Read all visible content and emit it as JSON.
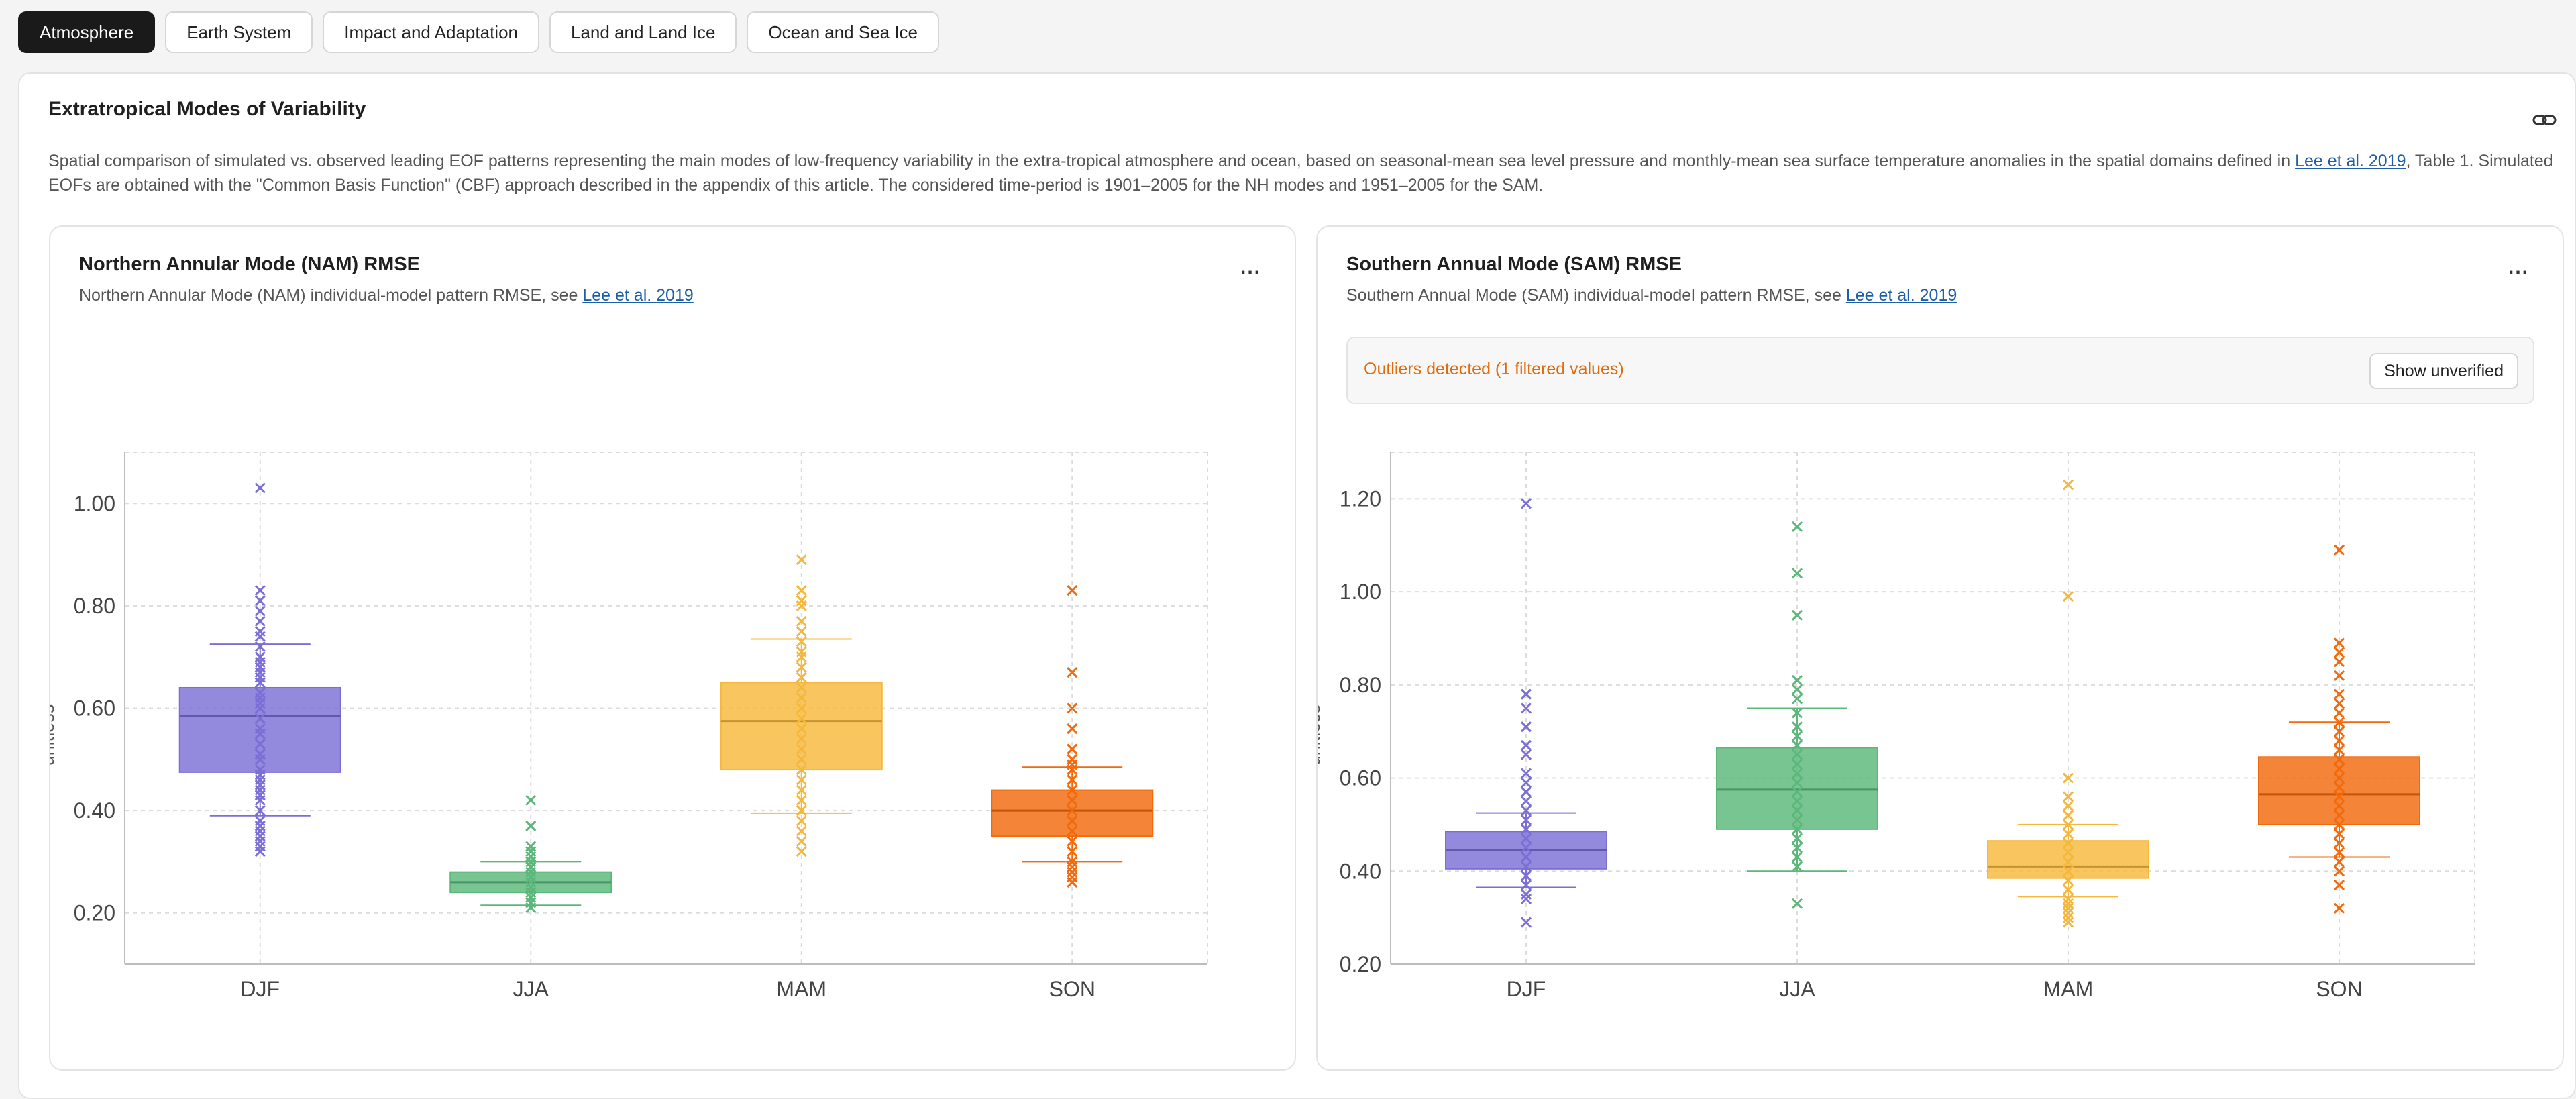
{
  "tabs": [
    {
      "label": "Atmosphere",
      "active": true
    },
    {
      "label": "Earth System",
      "active": false
    },
    {
      "label": "Impact and Adaptation",
      "active": false
    },
    {
      "label": "Land and Land Ice",
      "active": false
    },
    {
      "label": "Ocean and Sea Ice",
      "active": false
    }
  ],
  "section": {
    "title": "Extratropical Modes of Variability",
    "desc_part1": "Spatial comparison of simulated vs. observed leading EOF patterns representing the main modes of low-frequency variability in the extra-tropical atmosphere and ocean, based on seasonal-mean sea level pressure and monthly-mean sea surface temperature anomalies in the spatial domains defined in ",
    "desc_link": "Lee et al. 2019",
    "desc_part2": ", Table 1. Simulated EOFs are obtained with the \"Common Basis Function\" (CBF) approach described in the appendix of this article. The considered time-period is 1901–2005 for the NH modes and 1951–2005 for the SAM."
  },
  "cards": [
    {
      "title": "Northern Annular Mode (NAM) RMSE",
      "subtitle": "Northern Annular Mode (NAM) individual-model pattern RMSE, see ",
      "subtitle_link": "Lee et al. 2019",
      "menu": "..."
    },
    {
      "title": "Southern Annual Mode (SAM) RMSE",
      "subtitle": "Southern Annual Mode (SAM) individual-model pattern RMSE, see ",
      "subtitle_link": "Lee et al. 2019",
      "menu": "...",
      "outlier_text": "Outliers detected (1 filtered values)",
      "outlier_button": "Show unverified"
    }
  ],
  "colors": {
    "DJF": "#7b6fd6",
    "JJA": "#5cb87a",
    "MAM": "#f6b83c",
    "SON": "#f26a0c"
  },
  "chart_data": [
    {
      "type": "box",
      "title": "",
      "xlabel": "",
      "ylabel": "unitless",
      "ylim": [
        0.1,
        1.1
      ],
      "yticks": [
        0.2,
        0.4,
        0.6,
        0.8,
        1.0
      ],
      "ytick_labels": [
        "0.20",
        "0.40",
        "0.60",
        "0.80",
        "1.00"
      ],
      "grid": true,
      "categories": [
        "DJF",
        "JJA",
        "MAM",
        "SON"
      ],
      "boxes": [
        {
          "name": "DJF",
          "whisker_low": 0.39,
          "q1": 0.475,
          "median": 0.585,
          "q3": 0.64,
          "whisker_high": 0.725,
          "points": [
            1.03,
            0.83,
            0.81,
            0.79,
            0.77,
            0.75,
            0.74,
            0.72,
            0.7,
            0.69,
            0.68,
            0.67,
            0.66,
            0.65,
            0.63,
            0.62,
            0.61,
            0.6,
            0.58,
            0.56,
            0.55,
            0.53,
            0.51,
            0.5,
            0.48,
            0.47,
            0.46,
            0.45,
            0.44,
            0.43,
            0.42,
            0.4,
            0.38,
            0.37,
            0.36,
            0.35,
            0.34,
            0.33,
            0.32
          ]
        },
        {
          "name": "JJA",
          "whisker_low": 0.215,
          "q1": 0.24,
          "median": 0.26,
          "q3": 0.28,
          "whisker_high": 0.3,
          "points": [
            0.42,
            0.37,
            0.33,
            0.32,
            0.31,
            0.3,
            0.29,
            0.28,
            0.27,
            0.26,
            0.25,
            0.24,
            0.23,
            0.22,
            0.21
          ]
        },
        {
          "name": "MAM",
          "whisker_low": 0.395,
          "q1": 0.48,
          "median": 0.575,
          "q3": 0.65,
          "whisker_high": 0.735,
          "points": [
            0.89,
            0.83,
            0.81,
            0.8,
            0.77,
            0.75,
            0.73,
            0.71,
            0.7,
            0.68,
            0.66,
            0.64,
            0.62,
            0.6,
            0.58,
            0.56,
            0.54,
            0.52,
            0.5,
            0.48,
            0.46,
            0.44,
            0.42,
            0.4,
            0.38,
            0.36,
            0.34,
            0.32
          ]
        },
        {
          "name": "SON",
          "whisker_low": 0.3,
          "q1": 0.35,
          "median": 0.4,
          "q3": 0.44,
          "whisker_high": 0.485,
          "points": [
            0.83,
            0.67,
            0.6,
            0.56,
            0.52,
            0.5,
            0.49,
            0.48,
            0.46,
            0.44,
            0.42,
            0.4,
            0.38,
            0.36,
            0.34,
            0.32,
            0.3,
            0.29,
            0.28,
            0.27,
            0.26
          ]
        }
      ]
    },
    {
      "type": "box",
      "title": "",
      "xlabel": "",
      "ylabel": "unitless",
      "ylim": [
        0.2,
        1.3
      ],
      "yticks": [
        0.2,
        0.4,
        0.6,
        0.8,
        1.0,
        1.2
      ],
      "ytick_labels": [
        "0.20",
        "0.40",
        "0.60",
        "0.80",
        "1.00",
        "1.20"
      ],
      "grid": true,
      "categories": [
        "DJF",
        "JJA",
        "MAM",
        "SON"
      ],
      "boxes": [
        {
          "name": "DJF",
          "whisker_low": 0.365,
          "q1": 0.405,
          "median": 0.445,
          "q3": 0.485,
          "whisker_high": 0.525,
          "points": [
            1.19,
            0.78,
            0.75,
            0.71,
            0.67,
            0.65,
            0.61,
            0.59,
            0.57,
            0.55,
            0.53,
            0.51,
            0.49,
            0.47,
            0.45,
            0.43,
            0.41,
            0.39,
            0.37,
            0.35,
            0.34,
            0.29
          ]
        },
        {
          "name": "JJA",
          "whisker_low": 0.4,
          "q1": 0.49,
          "median": 0.575,
          "q3": 0.665,
          "whisker_high": 0.75,
          "points": [
            1.14,
            1.04,
            0.95,
            0.81,
            0.79,
            0.77,
            0.74,
            0.71,
            0.69,
            0.67,
            0.65,
            0.63,
            0.61,
            0.59,
            0.57,
            0.55,
            0.53,
            0.51,
            0.49,
            0.47,
            0.45,
            0.43,
            0.41,
            0.33
          ]
        },
        {
          "name": "MAM",
          "whisker_low": 0.345,
          "q1": 0.385,
          "median": 0.41,
          "q3": 0.465,
          "whisker_high": 0.5,
          "points": [
            1.23,
            0.99,
            0.6,
            0.56,
            0.54,
            0.52,
            0.5,
            0.48,
            0.46,
            0.44,
            0.42,
            0.4,
            0.38,
            0.36,
            0.34,
            0.33,
            0.32,
            0.31,
            0.3,
            0.29
          ]
        },
        {
          "name": "SON",
          "whisker_low": 0.43,
          "q1": 0.5,
          "median": 0.565,
          "q3": 0.645,
          "whisker_high": 0.72,
          "points": [
            1.09,
            0.89,
            0.87,
            0.85,
            0.82,
            0.78,
            0.76,
            0.74,
            0.72,
            0.7,
            0.68,
            0.66,
            0.64,
            0.62,
            0.6,
            0.58,
            0.56,
            0.54,
            0.52,
            0.5,
            0.48,
            0.46,
            0.44,
            0.42,
            0.4,
            0.37,
            0.32
          ]
        }
      ]
    }
  ]
}
